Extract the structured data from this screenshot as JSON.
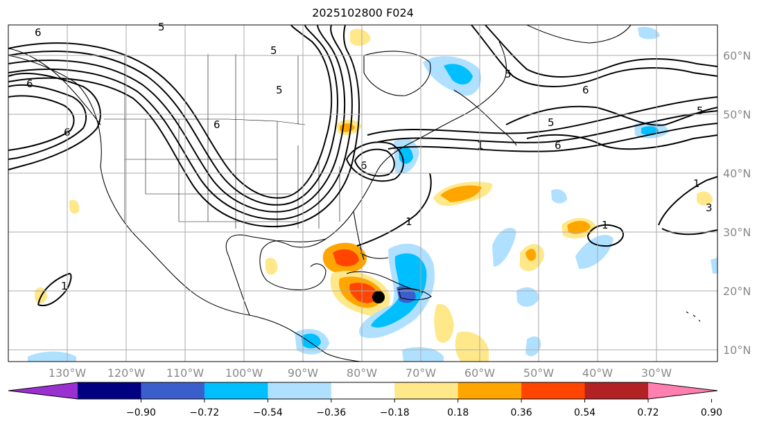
{
  "title": "2025102800 F024",
  "lon_ticks": [
    {
      "lon": -130,
      "label": "130°W"
    },
    {
      "lon": -120,
      "label": "120°W"
    },
    {
      "lon": -110,
      "label": "110°W"
    },
    {
      "lon": -100,
      "label": "100°W"
    },
    {
      "lon": -90,
      "label": "90°W"
    },
    {
      "lon": -80,
      "label": "80°W"
    },
    {
      "lon": -70,
      "label": "70°W"
    },
    {
      "lon": -60,
      "label": "60°W"
    },
    {
      "lon": -50,
      "label": "50°W"
    },
    {
      "lon": -40,
      "label": "40°W"
    },
    {
      "lon": -30,
      "label": "30°W"
    }
  ],
  "lat_ticks": [
    {
      "lat": 60,
      "label": "60°N"
    },
    {
      "lat": 50,
      "label": "50°N"
    },
    {
      "lat": 40,
      "label": "40°N"
    },
    {
      "lat": 30,
      "label": "30°N"
    },
    {
      "lat": 20,
      "label": "20°N"
    },
    {
      "lat": 10,
      "label": "10°N"
    }
  ],
  "colorbar": {
    "colors": [
      "#9b30d0",
      "#000080",
      "#3a5fcd",
      "#00bfff",
      "#b0e0ff",
      "#ffffff",
      "#ffe88a",
      "#ffa500",
      "#ff4500",
      "#b22222",
      "#ff7fb0"
    ],
    "ticks": [
      "−0.90",
      "−0.72",
      "−0.54",
      "−0.36",
      "−0.18",
      "0.18",
      "0.36",
      "0.54",
      "0.72",
      "0.90"
    ]
  },
  "contour_labels": [
    "6",
    "5",
    "6",
    "6",
    "5",
    "6",
    "5",
    "6",
    "5",
    "6",
    "5",
    "1",
    "1",
    "1",
    "1",
    "6",
    "5",
    "3",
    "1"
  ],
  "colors": {
    "ocean": "#ffffff",
    "grid": "#aaaaaa",
    "coast": "#000000"
  },
  "storm_marker": {
    "lon": -77.5,
    "lat": 18.5
  }
}
